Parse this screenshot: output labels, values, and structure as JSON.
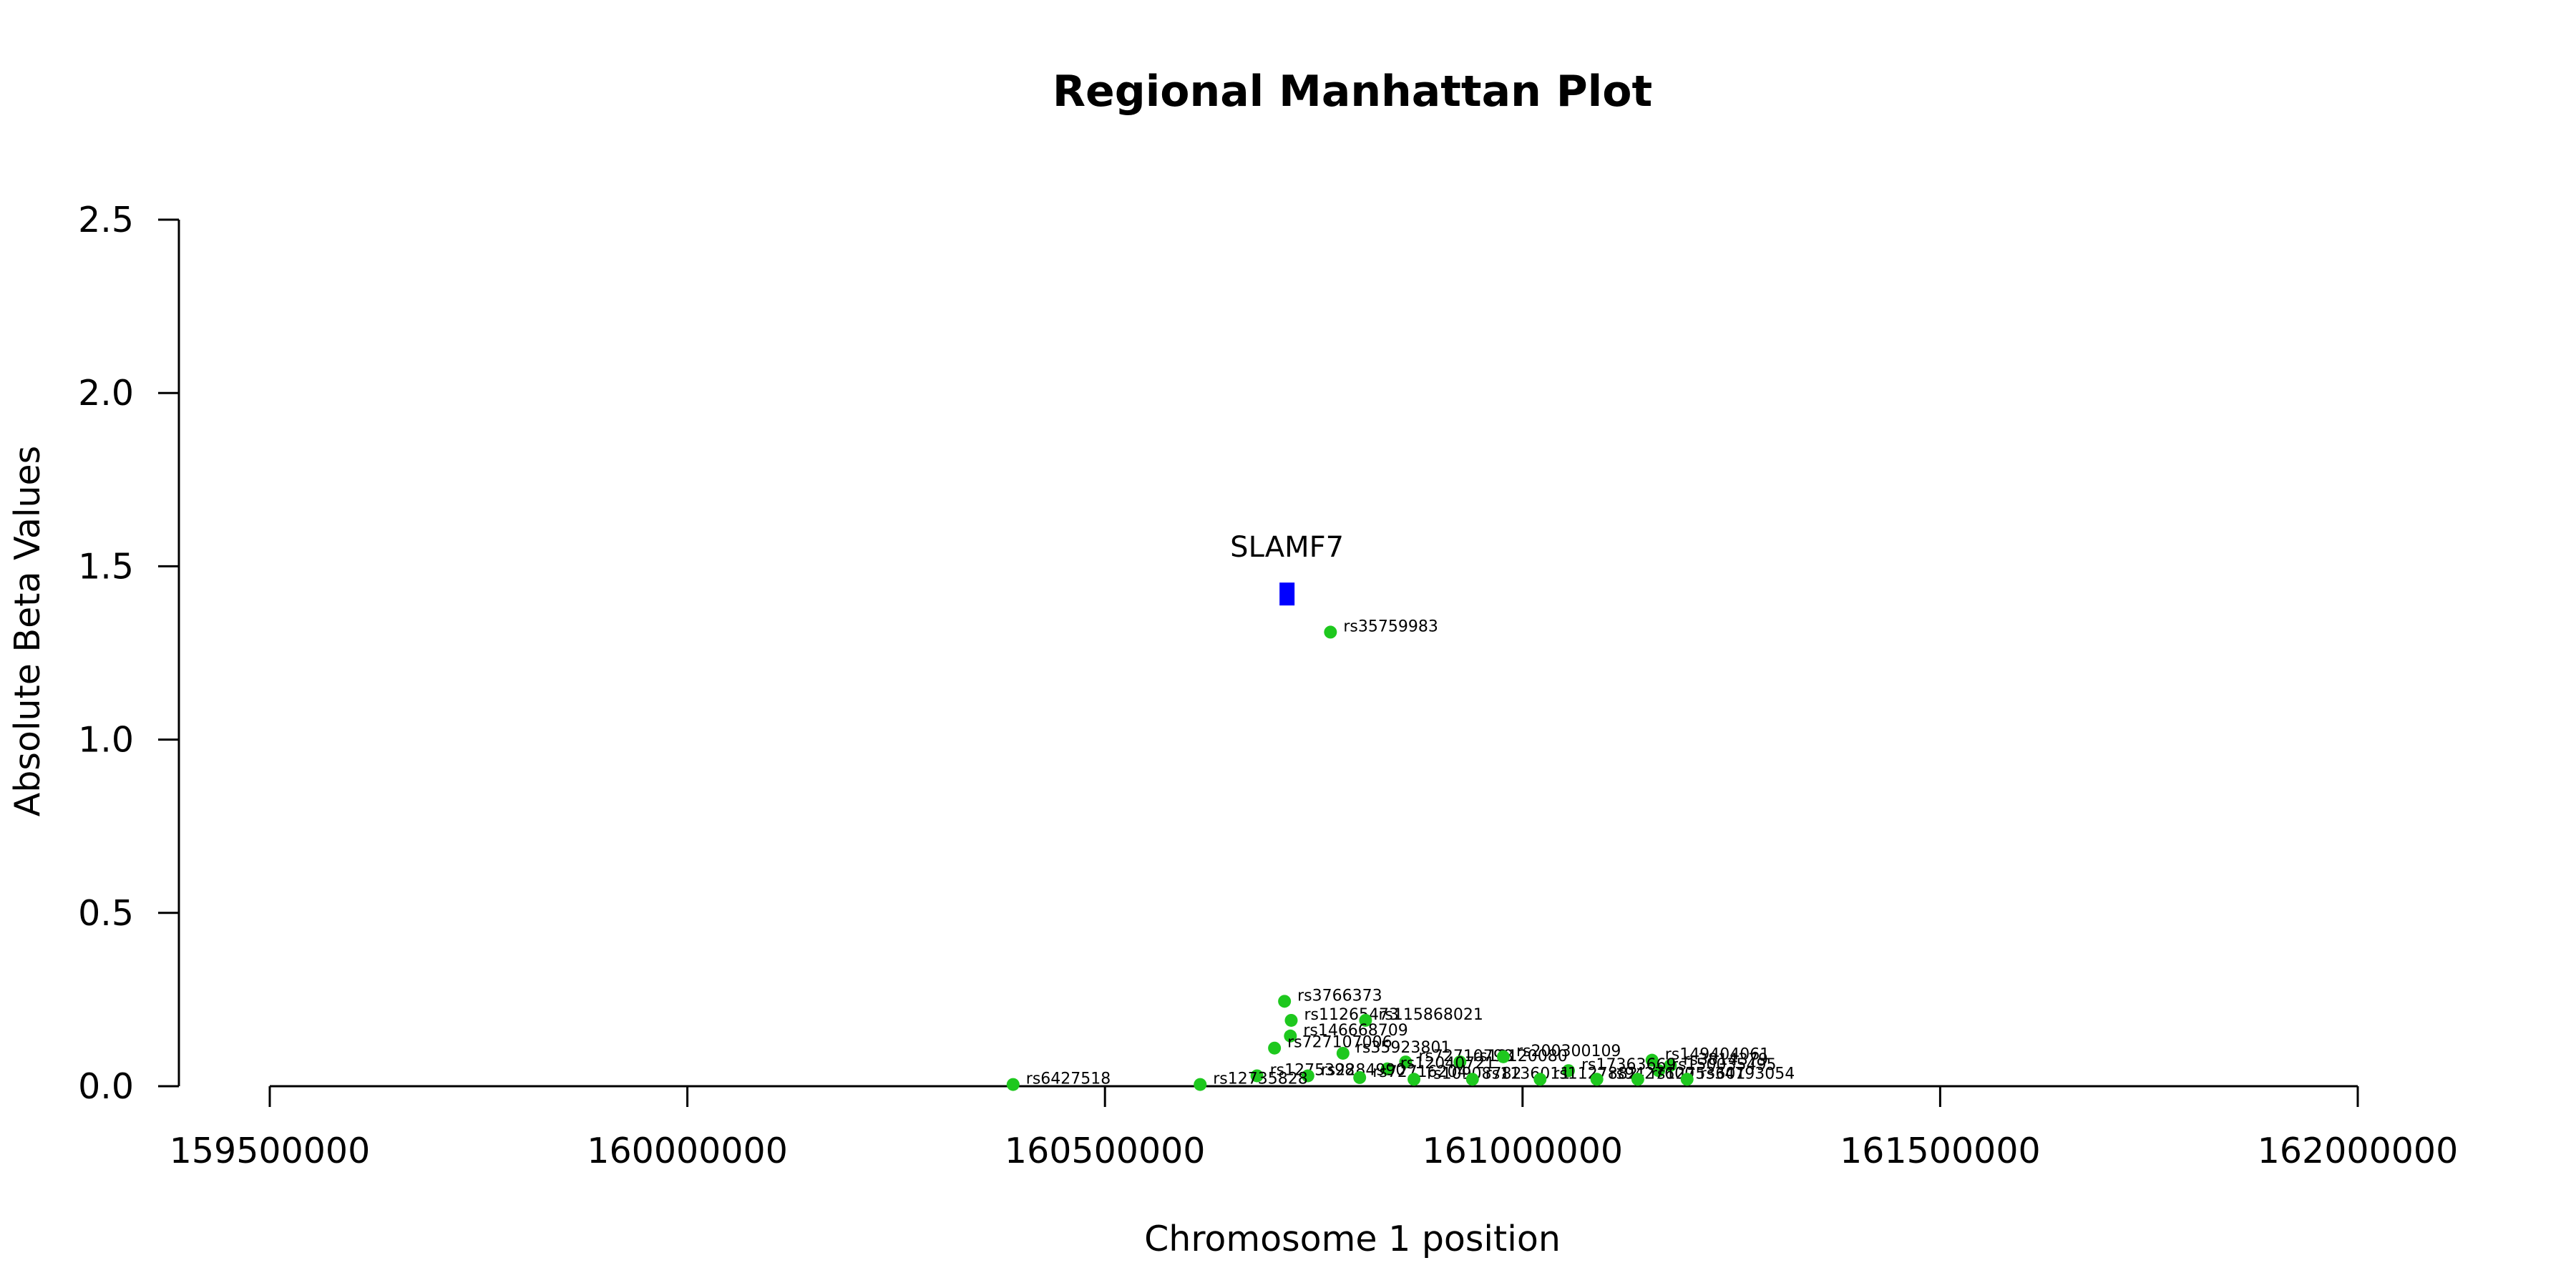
{
  "chart_data": {
    "type": "scatter",
    "title": "Regional Manhattan Plot",
    "xlabel": "Chromosome 1 position",
    "ylabel": "Absolute Beta Values",
    "xlim": [
      159500000,
      162000000
    ],
    "ylim": [
      0,
      2.5
    ],
    "x_ticks": [
      "159500000",
      "160000000",
      "160500000",
      "161000000",
      "161500000",
      "162000000"
    ],
    "y_ticks": [
      "0.0",
      "0.5",
      "1.0",
      "1.5",
      "2.0",
      "2.5"
    ],
    "grid": false,
    "point_color": "#1ec81e",
    "gene_color": "#0000ff",
    "genes": [
      {
        "name": "SLAMF7",
        "start": 160709000,
        "end": 160727000,
        "y": 1.42
      }
    ],
    "snps": [
      {
        "id": "rs35759983",
        "x": 160770000,
        "y": 1.31
      },
      {
        "id": "rs3766373",
        "x": 160715000,
        "y": 0.245
      },
      {
        "id": "rs11265473",
        "x": 160723000,
        "y": 0.19
      },
      {
        "id": "rs115868021",
        "x": 160812000,
        "y": 0.19
      },
      {
        "id": "rs146668709",
        "x": 160722000,
        "y": 0.145
      },
      {
        "id": "rs727107006",
        "x": 160703000,
        "y": 0.11
      },
      {
        "id": "rs35923801",
        "x": 160785000,
        "y": 0.095
      },
      {
        "id": "rs72710798",
        "x": 160860000,
        "y": 0.07
      },
      {
        "id": "rs12120080",
        "x": 160925000,
        "y": 0.07
      },
      {
        "id": "rs200300109",
        "x": 160977000,
        "y": 0.085
      },
      {
        "id": "rs149404061",
        "x": 161155000,
        "y": 0.075
      },
      {
        "id": "rs3814379",
        "x": 161177000,
        "y": 0.06
      },
      {
        "id": "rs12040721",
        "x": 160838000,
        "y": 0.05
      },
      {
        "id": "rs150035495",
        "x": 161163000,
        "y": 0.045
      },
      {
        "id": "rs17363669",
        "x": 161055000,
        "y": 0.045
      },
      {
        "id": "rs1275398",
        "x": 160682000,
        "y": 0.03
      },
      {
        "id": "rs2284990",
        "x": 160743000,
        "y": 0.03
      },
      {
        "id": "rs72716204",
        "x": 160805000,
        "y": 0.025
      },
      {
        "id": "rs10908782",
        "x": 160870000,
        "y": 0.02
      },
      {
        "id": "rs1136011",
        "x": 160940000,
        "y": 0.02
      },
      {
        "id": "rs1127882",
        "x": 161021000,
        "y": 0.02
      },
      {
        "id": "rs9427600",
        "x": 161089000,
        "y": 0.02
      },
      {
        "id": "rs12753601",
        "x": 161138000,
        "y": 0.02
      },
      {
        "id": "rs34793054",
        "x": 161197000,
        "y": 0.02
      },
      {
        "id": "rs6427518",
        "x": 160390000,
        "y": 0.005
      },
      {
        "id": "rs12735828",
        "x": 160614000,
        "y": 0.005
      }
    ]
  }
}
